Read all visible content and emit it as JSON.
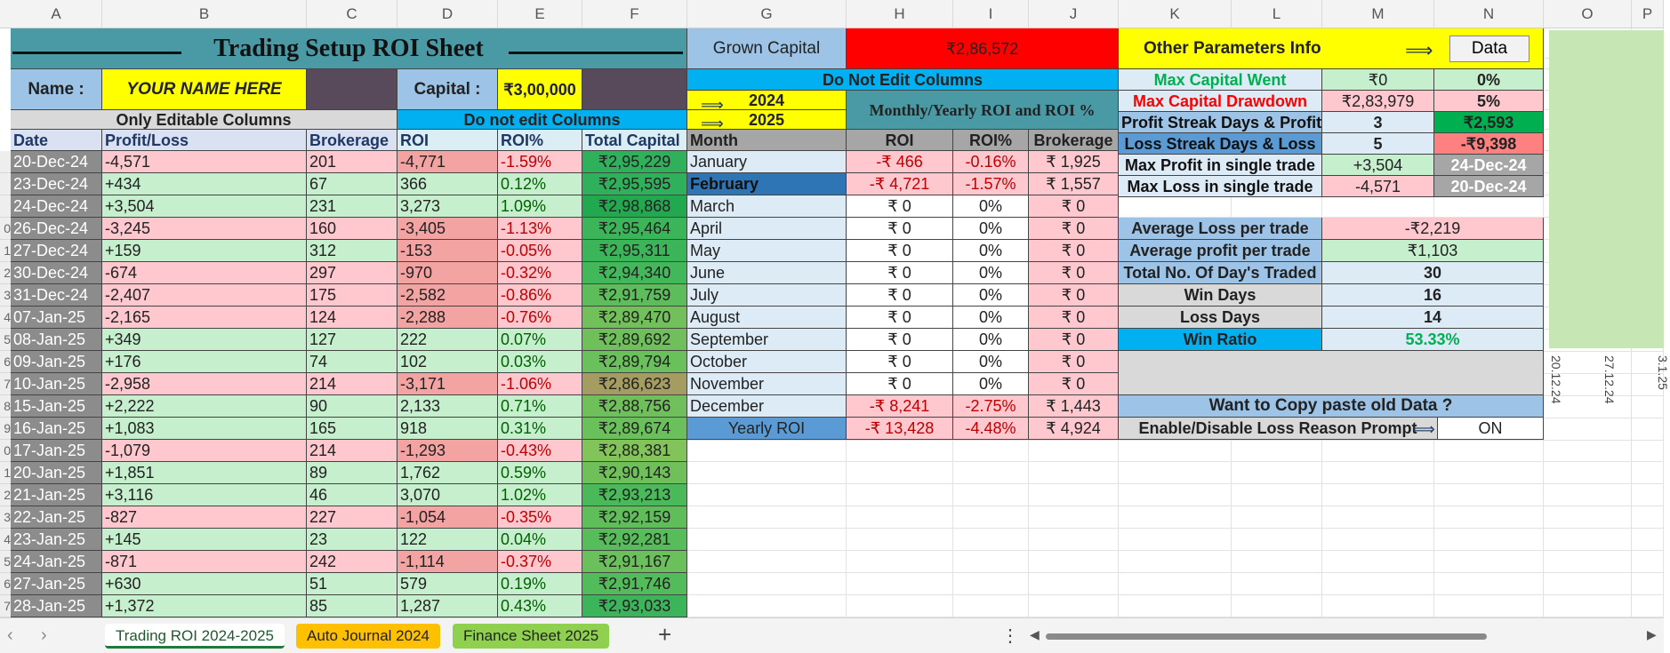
{
  "columns": [
    "A",
    "B",
    "C",
    "D",
    "E",
    "F",
    "G",
    "H",
    "I",
    "J",
    "K",
    "L",
    "M",
    "N",
    "O",
    "P"
  ],
  "title": "Trading Setup ROI Sheet",
  "name_label": "Name :",
  "name_value": "YOUR NAME HERE",
  "capital_label": "Capital :",
  "capital_value": "₹3,00,000",
  "editable_label": "Only Editable Columns",
  "noedit_label": "Do not edit Columns",
  "main_headers": [
    "Date",
    "Profit/Loss",
    "Brokerage",
    "ROI",
    "ROI%",
    "Total Capital"
  ],
  "rows": [
    [
      "20-Dec-24",
      "-4,571",
      "201",
      "-4,771",
      "-1.59%",
      "₹2,95,229"
    ],
    [
      "23-Dec-24",
      "+434",
      "67",
      "366",
      "0.12%",
      "₹2,95,595"
    ],
    [
      "24-Dec-24",
      "+3,504",
      "231",
      "3,273",
      "1.09%",
      "₹2,98,868"
    ],
    [
      "26-Dec-24",
      "-3,245",
      "160",
      "-3,405",
      "-1.13%",
      "₹2,95,464"
    ],
    [
      "27-Dec-24",
      "+159",
      "312",
      "-153",
      "-0.05%",
      "₹2,95,311"
    ],
    [
      "30-Dec-24",
      "-674",
      "297",
      "-970",
      "-0.32%",
      "₹2,94,340"
    ],
    [
      "31-Dec-24",
      "-2,407",
      "175",
      "-2,582",
      "-0.86%",
      "₹2,91,759"
    ],
    [
      "07-Jan-25",
      "-2,165",
      "124",
      "-2,288",
      "-0.76%",
      "₹2,89,470"
    ],
    [
      "08-Jan-25",
      "+349",
      "127",
      "222",
      "0.07%",
      "₹2,89,692"
    ],
    [
      "09-Jan-25",
      "+176",
      "74",
      "102",
      "0.03%",
      "₹2,89,794"
    ],
    [
      "10-Jan-25",
      "-2,958",
      "214",
      "-3,171",
      "-1.06%",
      "₹2,86,623"
    ],
    [
      "15-Jan-25",
      "+2,222",
      "90",
      "2,133",
      "0.71%",
      "₹2,88,756"
    ],
    [
      "16-Jan-25",
      "+1,083",
      "165",
      "918",
      "0.31%",
      "₹2,89,674"
    ],
    [
      "17-Jan-25",
      "-1,079",
      "214",
      "-1,293",
      "-0.43%",
      "₹2,88,381"
    ],
    [
      "20-Jan-25",
      "+1,851",
      "89",
      "1,762",
      "0.59%",
      "₹2,90,143"
    ],
    [
      "21-Jan-25",
      "+3,116",
      "46",
      "3,070",
      "1.02%",
      "₹2,93,213"
    ],
    [
      "22-Jan-25",
      "-827",
      "227",
      "-1,054",
      "-0.35%",
      "₹2,92,159"
    ],
    [
      "23-Jan-25",
      "+145",
      "23",
      "122",
      "0.04%",
      "₹2,92,281"
    ],
    [
      "24-Jan-25",
      "-871",
      "242",
      "-1,114",
      "-0.37%",
      "₹2,91,167"
    ],
    [
      "27-Jan-25",
      "+630",
      "51",
      "579",
      "0.19%",
      "₹2,91,746"
    ],
    [
      "28-Jan-25",
      "+1,372",
      "85",
      "1,287",
      "0.43%",
      "₹2,93,033"
    ]
  ],
  "row_numbers": [
    "",
    "",
    "",
    "",
    "",
    "",
    "",
    "",
    "0",
    "1",
    "2",
    "3",
    "4",
    "5",
    "6",
    "7",
    "8",
    "9",
    "0",
    "1",
    "2",
    "3",
    "4",
    "5",
    "6",
    "7"
  ],
  "grown_capital_label": "Grown Capital",
  "grown_capital_value": "₹2,86,572",
  "do_not_edit_label": "Do Not Edit Columns",
  "year_2024": "2024",
  "year_2025": "2025",
  "monthly_title": "Monthly/Yearly ROI and ROI %",
  "month_headers": [
    "Month",
    "ROI",
    "ROI%",
    "Brokerage"
  ],
  "months": [
    [
      "January",
      "-₹ 466",
      "-0.16%",
      "₹ 1,925"
    ],
    [
      "February",
      "-₹ 4,721",
      "-1.57%",
      "₹ 1,557"
    ],
    [
      "March",
      "₹ 0",
      "0%",
      "₹ 0"
    ],
    [
      "April",
      "₹ 0",
      "0%",
      "₹ 0"
    ],
    [
      "May",
      "₹ 0",
      "0%",
      "₹ 0"
    ],
    [
      "June",
      "₹ 0",
      "0%",
      "₹ 0"
    ],
    [
      "July",
      "₹ 0",
      "0%",
      "₹ 0"
    ],
    [
      "August",
      "₹ 0",
      "0%",
      "₹ 0"
    ],
    [
      "September",
      "₹ 0",
      "0%",
      "₹ 0"
    ],
    [
      "October",
      "₹ 0",
      "0%",
      "₹ 0"
    ],
    [
      "November",
      "₹ 0",
      "0%",
      "₹ 0"
    ],
    [
      "December",
      "-₹ 8,241",
      "-2.75%",
      "₹ 1,443"
    ]
  ],
  "yearly": [
    "Yearly ROI",
    "-₹ 13,428",
    "-4.48%",
    "₹ 4,924"
  ],
  "other_params_label": "Other Parameters Info",
  "data_button": "Data",
  "stats_top": [
    [
      "Max Capital Went",
      "₹0",
      "0%"
    ],
    [
      "Max Capital Drawdown",
      "₹2,83,979",
      "5%"
    ],
    [
      "Profit Streak Days & Profit",
      "3",
      "₹2,593"
    ],
    [
      "Loss Streak Days & Loss",
      "5",
      "-₹9,398"
    ],
    [
      "Max Profit in single trade",
      "+3,504",
      "24-Dec-24"
    ],
    [
      "Max Loss in single trade",
      "-4,571",
      "20-Dec-24"
    ]
  ],
  "stats_bottom": [
    [
      "Average Loss per trade",
      "-₹2,219"
    ],
    [
      "Average profit per trade",
      "₹1,103"
    ],
    [
      "Total No. Of Day's Traded",
      "30"
    ],
    [
      "Win Days",
      "16"
    ],
    [
      "Loss Days",
      "14"
    ],
    [
      "Win Ratio",
      "53.33%"
    ]
  ],
  "copy_paste_label": "Want to Copy paste old Data ?",
  "loss_prompt_label": "Enable/Disable Loss Reason Prompt",
  "loss_prompt_value": "ON",
  "chart_labels": [
    "20.12.24",
    "27.12.24",
    "3.1.25"
  ],
  "tabs": [
    "Trading ROI 2024-2025",
    "Auto Journal 2024",
    "Finance Sheet 2025"
  ],
  "add_sheet": "+",
  "more": "⋮"
}
